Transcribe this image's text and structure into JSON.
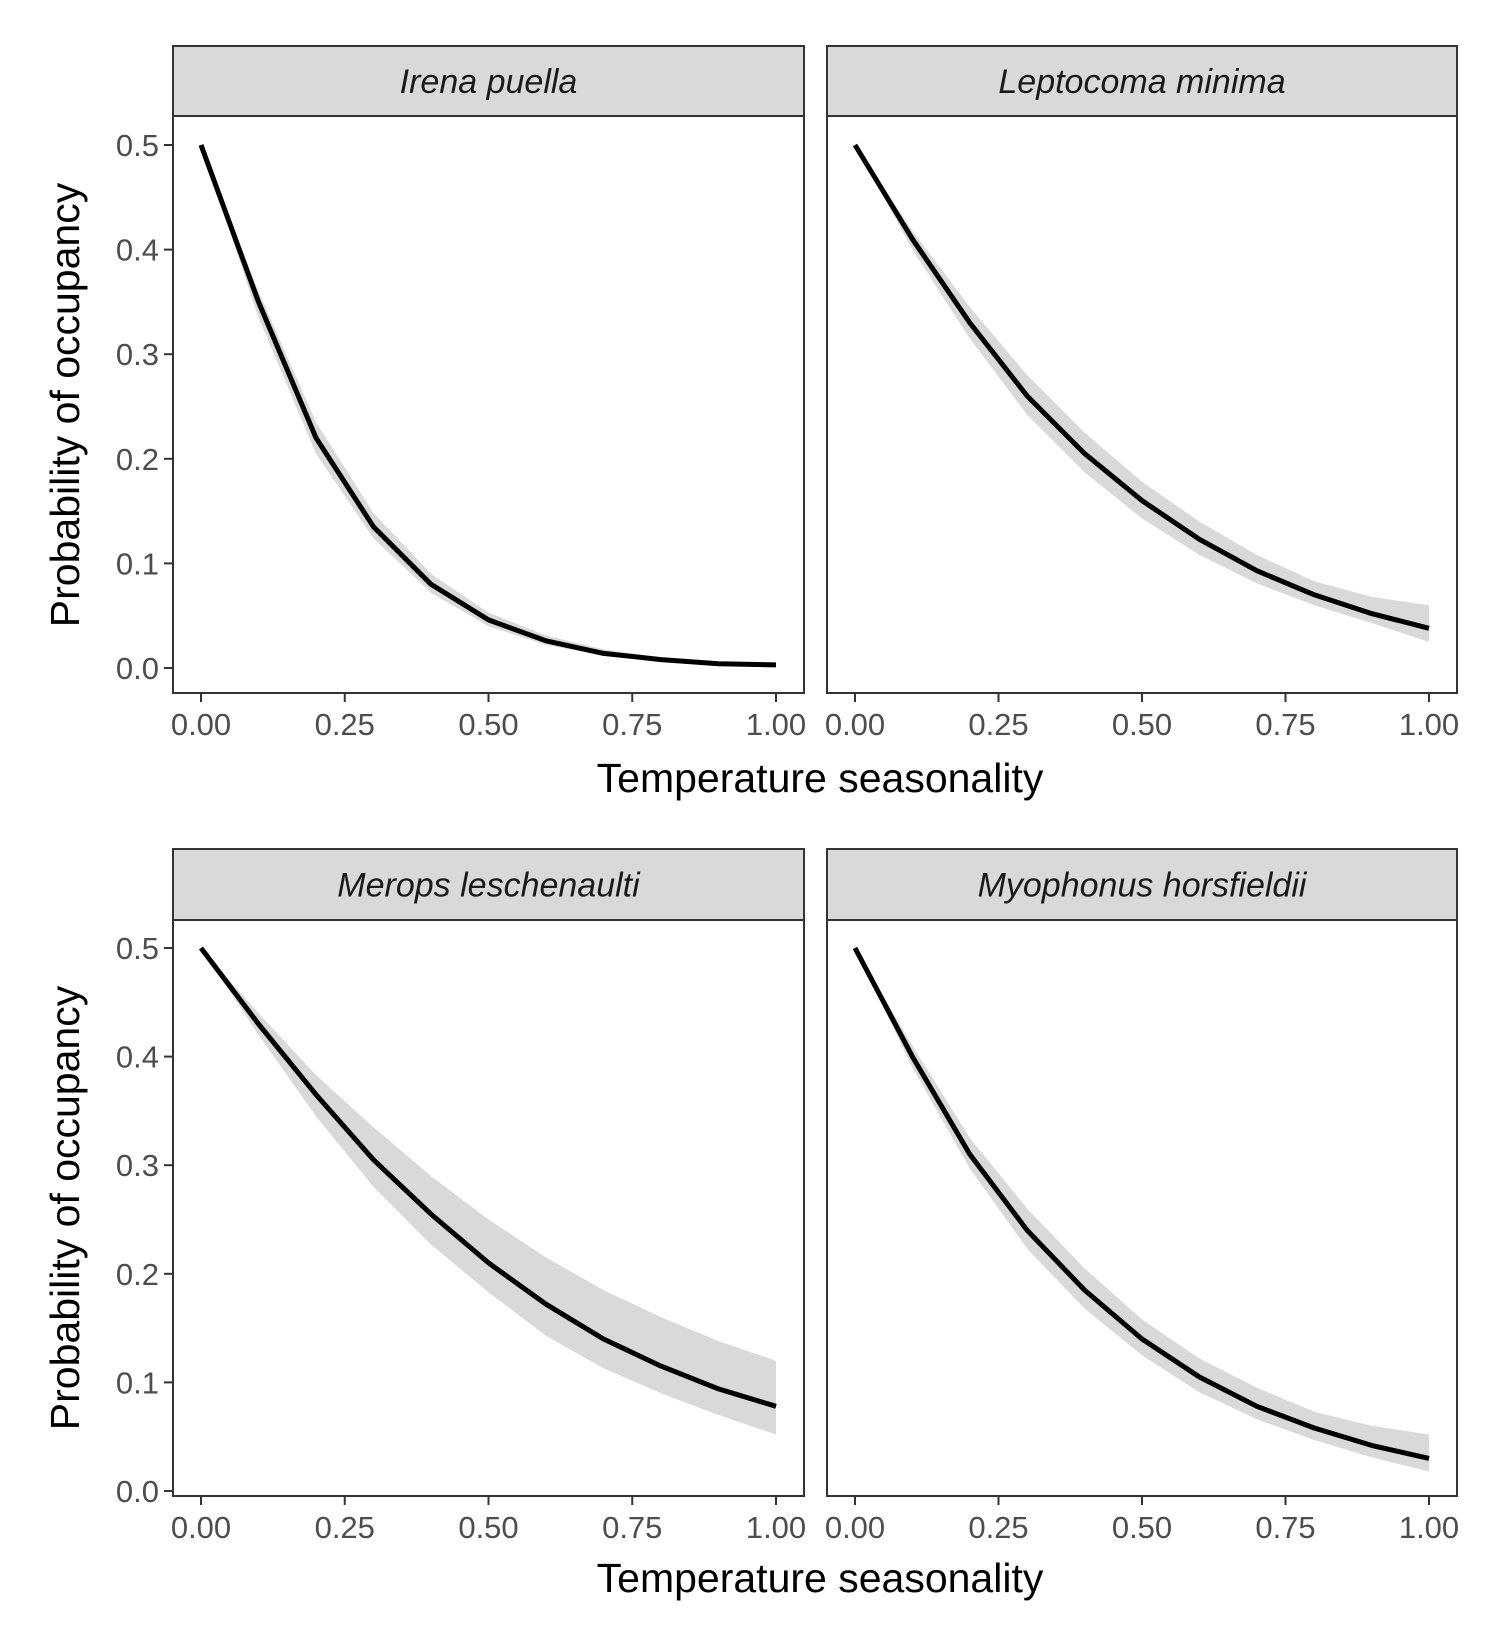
{
  "chart_data": {
    "type": "line",
    "layout": "facet-grid 2x2 with shaded confidence bands",
    "xlabel": "Temperature seasonality",
    "ylabel": "Probability of occupancy",
    "xlim": [
      0,
      1
    ],
    "ylim": [
      0,
      0.5
    ],
    "x_ticks": [
      0,
      0.25,
      0.5,
      0.75,
      1
    ],
    "x_tick_labels": [
      "0.00",
      "0.25",
      "0.50",
      "0.75",
      "1.00"
    ],
    "y_ticks": [
      0,
      0.1,
      0.2,
      0.3,
      0.4,
      0.5
    ],
    "y_tick_labels": [
      "0.0",
      "0.1",
      "0.2",
      "0.3",
      "0.4",
      "0.5"
    ],
    "grid": false,
    "colors": {
      "line": "#000000",
      "band": "#d9d9d9",
      "strip": "#d9d9d9",
      "panel_border": "#333333"
    },
    "panels": [
      {
        "title": "Irena puella",
        "x": [
          0,
          0.1,
          0.2,
          0.3,
          0.4,
          0.5,
          0.6,
          0.7,
          0.8,
          0.9,
          1.0
        ],
        "y": [
          0.5,
          0.35,
          0.22,
          0.135,
          0.08,
          0.046,
          0.026,
          0.014,
          0.008,
          0.004,
          0.003
        ],
        "lower": [
          0.5,
          0.335,
          0.205,
          0.124,
          0.072,
          0.04,
          0.022,
          0.012,
          0.006,
          0.003,
          0.002
        ],
        "upper": [
          0.5,
          0.36,
          0.235,
          0.148,
          0.09,
          0.053,
          0.031,
          0.018,
          0.01,
          0.006,
          0.004
        ]
      },
      {
        "title": "Leptocoma minima",
        "x": [
          0,
          0.1,
          0.2,
          0.3,
          0.4,
          0.5,
          0.6,
          0.7,
          0.8,
          0.9,
          1.0
        ],
        "y": [
          0.5,
          0.41,
          0.33,
          0.26,
          0.205,
          0.16,
          0.123,
          0.093,
          0.07,
          0.052,
          0.038
        ],
        "lower": [
          0.5,
          0.4,
          0.315,
          0.242,
          0.187,
          0.143,
          0.108,
          0.081,
          0.06,
          0.043,
          0.025
        ],
        "upper": [
          0.5,
          0.418,
          0.345,
          0.28,
          0.225,
          0.178,
          0.14,
          0.108,
          0.083,
          0.068,
          0.06
        ]
      },
      {
        "title": "Merops leschenaulti",
        "x": [
          0,
          0.1,
          0.2,
          0.3,
          0.4,
          0.5,
          0.6,
          0.7,
          0.8,
          0.9,
          1.0
        ],
        "y": [
          0.5,
          0.43,
          0.365,
          0.305,
          0.255,
          0.21,
          0.172,
          0.14,
          0.115,
          0.094,
          0.078
        ],
        "lower": [
          0.5,
          0.42,
          0.345,
          0.28,
          0.227,
          0.183,
          0.143,
          0.113,
          0.09,
          0.07,
          0.052
        ],
        "upper": [
          0.5,
          0.44,
          0.383,
          0.335,
          0.29,
          0.25,
          0.215,
          0.185,
          0.16,
          0.138,
          0.12
        ]
      },
      {
        "title": "Myophonus horsfieldii",
        "x": [
          0,
          0.1,
          0.2,
          0.3,
          0.4,
          0.5,
          0.6,
          0.7,
          0.8,
          0.9,
          1.0
        ],
        "y": [
          0.5,
          0.4,
          0.31,
          0.24,
          0.185,
          0.14,
          0.105,
          0.078,
          0.058,
          0.042,
          0.03
        ],
        "lower": [
          0.5,
          0.39,
          0.297,
          0.223,
          0.168,
          0.125,
          0.091,
          0.066,
          0.047,
          0.031,
          0.018
        ],
        "upper": [
          0.5,
          0.41,
          0.325,
          0.26,
          0.205,
          0.158,
          0.122,
          0.095,
          0.073,
          0.06,
          0.052
        ]
      }
    ]
  }
}
